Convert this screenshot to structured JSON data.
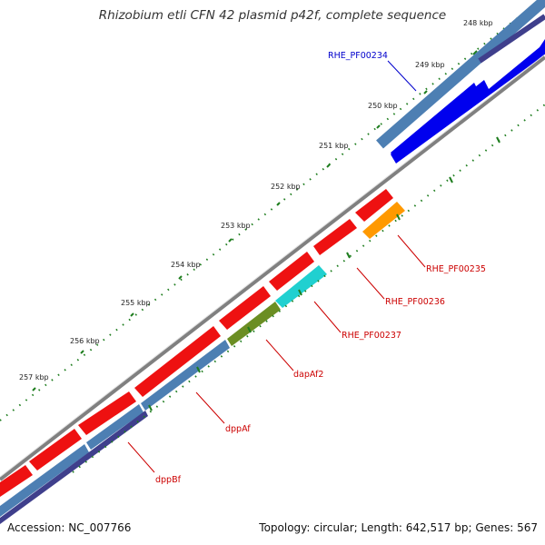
{
  "title": "Rhizobium etli CFN 42 plasmid p42f, complete sequence",
  "footer": {
    "accession": "Accession: NC_007766",
    "summary": "Topology: circular; Length: 642,517 bp; Genes: 567"
  },
  "ticks": [
    "248 kbp",
    "249 kbp",
    "250 kbp",
    "251 kbp",
    "252 kbp",
    "253 kbp",
    "254 kbp",
    "255 kbp",
    "256 kbp",
    "257 kbp"
  ],
  "genes": [
    {
      "name": "RHE_PF00234",
      "color": "#0000cc"
    },
    {
      "name": "RHE_PF00235",
      "color": "#cc0000"
    },
    {
      "name": "RHE_PF00236",
      "color": "#cc0000"
    },
    {
      "name": "RHE_PF00237",
      "color": "#cc0000"
    },
    {
      "name": "dapAf2",
      "color": "#cc0000"
    },
    {
      "name": "dppAf",
      "color": "#cc0000"
    },
    {
      "name": "dppBf",
      "color": "#cc0000"
    }
  ],
  "colors": {
    "backbone": "#808080",
    "cds_forward": "#ee1111",
    "cds_reverse": "#0000ee",
    "cog_steel": "#4d7fb3",
    "cog_navy": "#3f3f8c",
    "cog_cyan": "#20d0d0",
    "cog_olive": "#6b8e23",
    "cog_orange": "#ff9900",
    "tick": "#1e7d1e"
  }
}
